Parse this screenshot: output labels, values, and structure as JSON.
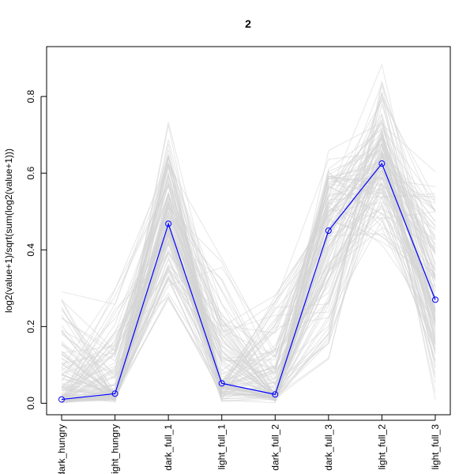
{
  "chart_data": {
    "type": "line",
    "title": "2",
    "xlabel": "",
    "ylabel": "log2(value+1)/sqrt(sum(log2(value+1)))",
    "categories": [
      "dark_hungry",
      "light_hungry",
      "dark_full_1",
      "light_full_1",
      "dark_full_2",
      "dark_full_3",
      "light_full_2",
      "light_full_3"
    ],
    "ylim": [
      -0.03,
      0.93
    ],
    "yticks": [
      0.0,
      0.2,
      0.4,
      0.6,
      0.8
    ],
    "ytick_labels": [
      "0.0",
      "0.2",
      "0.4",
      "0.6",
      "0.8"
    ],
    "series": [
      {
        "values": [
          0.01,
          0.025,
          0.468,
          0.052,
          0.023,
          0.45,
          0.625,
          0.27
        ]
      }
    ],
    "background_profiles": {
      "count": 120,
      "mean": [
        0.01,
        0.025,
        0.468,
        0.052,
        0.023,
        0.45,
        0.625,
        0.27
      ],
      "min": [
        0.0,
        0.0,
        0.24,
        0.0,
        0.0,
        0.07,
        0.38,
        0.0
      ],
      "max": [
        0.34,
        0.34,
        0.76,
        0.4,
        0.34,
        0.71,
        0.91,
        0.63
      ]
    },
    "colors": {
      "mean_line": "#0000ff",
      "profiles": "#d3d3d3",
      "frame": "#000000"
    },
    "grid": false,
    "legend": "none"
  }
}
